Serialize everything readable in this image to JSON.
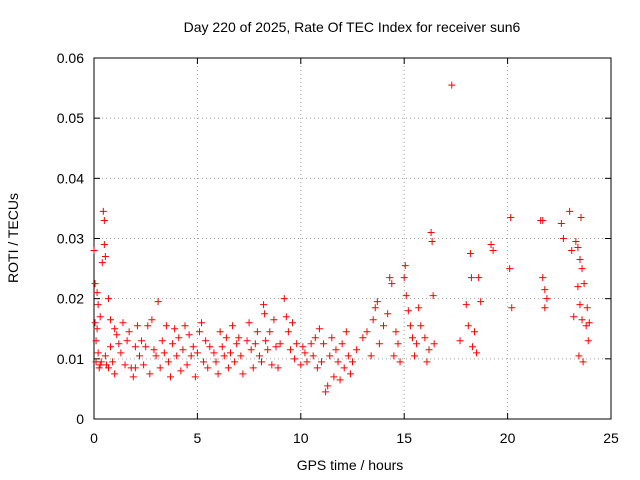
{
  "chart_data": {
    "type": "scatter",
    "title": "Day 220 of 2025, Rate Of TEC Index for receiver sun6",
    "xlabel": "GPS time / hours",
    "ylabel": "ROTI / TECUs",
    "xlim": [
      0,
      25
    ],
    "ylim": [
      0,
      0.06
    ],
    "x_ticks": [
      "0",
      "5",
      "10",
      "15",
      "20",
      "25"
    ],
    "y_ticks": [
      "0",
      "0.01",
      "0.02",
      "0.03",
      "0.04",
      "0.05",
      "0.06"
    ],
    "grid": true,
    "marker": "+",
    "color": "#ff0000",
    "series": [
      {
        "points": [
          [
            0.0,
            0.028
          ],
          [
            0.05,
            0.0225
          ],
          [
            0.05,
            0.016
          ],
          [
            0.1,
            0.013
          ],
          [
            0.1,
            0.0095
          ],
          [
            0.15,
            0.021
          ],
          [
            0.15,
            0.015
          ],
          [
            0.2,
            0.019
          ],
          [
            0.2,
            0.011
          ],
          [
            0.25,
            0.0085
          ],
          [
            0.3,
            0.017
          ],
          [
            0.3,
            0.009
          ],
          [
            0.35,
            0.0095
          ],
          [
            0.4,
            0.026
          ],
          [
            0.45,
            0.0345
          ],
          [
            0.5,
            0.033
          ],
          [
            0.5,
            0.029
          ],
          [
            0.55,
            0.027
          ],
          [
            0.55,
            0.0105
          ],
          [
            0.6,
            0.009
          ],
          [
            0.7,
            0.02
          ],
          [
            0.7,
            0.0085
          ],
          [
            0.8,
            0.0165
          ],
          [
            0.8,
            0.012
          ],
          [
            0.9,
            0.0095
          ],
          [
            1.0,
            0.015
          ],
          [
            1.0,
            0.0075
          ],
          [
            1.1,
            0.014
          ],
          [
            1.2,
            0.0125
          ],
          [
            1.3,
            0.011
          ],
          [
            1.4,
            0.016
          ],
          [
            1.5,
            0.009
          ],
          [
            1.6,
            0.013
          ],
          [
            1.7,
            0.0145
          ],
          [
            1.8,
            0.0085
          ],
          [
            1.9,
            0.007
          ],
          [
            2.0,
            0.012
          ],
          [
            2.0,
            0.0085
          ],
          [
            2.1,
            0.0155
          ],
          [
            2.2,
            0.0105
          ],
          [
            2.3,
            0.013
          ],
          [
            2.4,
            0.009
          ],
          [
            2.5,
            0.012
          ],
          [
            2.6,
            0.0155
          ],
          [
            2.7,
            0.0075
          ],
          [
            2.8,
            0.0165
          ],
          [
            2.9,
            0.0115
          ],
          [
            3.0,
            0.0105
          ],
          [
            3.1,
            0.0195
          ],
          [
            3.2,
            0.0085
          ],
          [
            3.3,
            0.013
          ],
          [
            3.4,
            0.011
          ],
          [
            3.5,
            0.0155
          ],
          [
            3.6,
            0.0095
          ],
          [
            3.7,
            0.007
          ],
          [
            3.8,
            0.0125
          ],
          [
            3.9,
            0.015
          ],
          [
            4.0,
            0.0105
          ],
          [
            4.1,
            0.0135
          ],
          [
            4.2,
            0.008
          ],
          [
            4.3,
            0.0115
          ],
          [
            4.4,
            0.0155
          ],
          [
            4.5,
            0.009
          ],
          [
            4.6,
            0.014
          ],
          [
            4.7,
            0.0105
          ],
          [
            4.8,
            0.012
          ],
          [
            4.9,
            0.007
          ],
          [
            5.0,
            0.011
          ],
          [
            5.1,
            0.0145
          ],
          [
            5.2,
            0.016
          ],
          [
            5.3,
            0.0095
          ],
          [
            5.4,
            0.013
          ],
          [
            5.5,
            0.0085
          ],
          [
            5.6,
            0.012
          ],
          [
            5.8,
            0.011
          ],
          [
            5.9,
            0.0095
          ],
          [
            6.0,
            0.0075
          ],
          [
            6.1,
            0.0145
          ],
          [
            6.2,
            0.012
          ],
          [
            6.3,
            0.0105
          ],
          [
            6.4,
            0.0135
          ],
          [
            6.5,
            0.0085
          ],
          [
            6.6,
            0.011
          ],
          [
            6.7,
            0.0155
          ],
          [
            6.8,
            0.0095
          ],
          [
            6.9,
            0.0125
          ],
          [
            7.0,
            0.0135
          ],
          [
            7.1,
            0.0105
          ],
          [
            7.2,
            0.0075
          ],
          [
            7.4,
            0.013
          ],
          [
            7.5,
            0.016
          ],
          [
            7.6,
            0.0115
          ],
          [
            7.7,
            0.0085
          ],
          [
            7.8,
            0.0125
          ],
          [
            7.9,
            0.0145
          ],
          [
            8.0,
            0.0105
          ],
          [
            8.1,
            0.0095
          ],
          [
            8.2,
            0.019
          ],
          [
            8.25,
            0.0175
          ],
          [
            8.3,
            0.013
          ],
          [
            8.4,
            0.0115
          ],
          [
            8.5,
            0.0145
          ],
          [
            8.6,
            0.009
          ],
          [
            8.7,
            0.0165
          ],
          [
            8.8,
            0.012
          ],
          [
            8.9,
            0.0085
          ],
          [
            9.0,
            0.0125
          ],
          [
            9.2,
            0.02
          ],
          [
            9.3,
            0.017
          ],
          [
            9.4,
            0.0145
          ],
          [
            9.5,
            0.0115
          ],
          [
            9.6,
            0.016
          ],
          [
            9.7,
            0.01
          ],
          [
            9.8,
            0.0125
          ],
          [
            10.0,
            0.009
          ],
          [
            10.1,
            0.012
          ],
          [
            10.2,
            0.011
          ],
          [
            10.3,
            0.0095
          ],
          [
            10.5,
            0.0125
          ],
          [
            10.6,
            0.0105
          ],
          [
            10.7,
            0.0135
          ],
          [
            10.8,
            0.0085
          ],
          [
            10.9,
            0.015
          ],
          [
            11.0,
            0.0095
          ],
          [
            11.1,
            0.0125
          ],
          [
            11.2,
            0.0045
          ],
          [
            11.3,
            0.0055
          ],
          [
            11.4,
            0.0105
          ],
          [
            11.5,
            0.0135
          ],
          [
            11.6,
            0.007
          ],
          [
            11.7,
            0.0115
          ],
          [
            11.8,
            0.0095
          ],
          [
            11.9,
            0.0065
          ],
          [
            12.0,
            0.0125
          ],
          [
            12.1,
            0.0085
          ],
          [
            12.2,
            0.0145
          ],
          [
            12.3,
            0.0105
          ],
          [
            12.4,
            0.0075
          ],
          [
            12.5,
            0.0095
          ],
          [
            12.7,
            0.0115
          ],
          [
            13.0,
            0.0135
          ],
          [
            13.2,
            0.0145
          ],
          [
            13.4,
            0.0105
          ],
          [
            13.5,
            0.0165
          ],
          [
            13.6,
            0.0185
          ],
          [
            13.7,
            0.0195
          ],
          [
            13.8,
            0.0125
          ],
          [
            14.0,
            0.0155
          ],
          [
            14.2,
            0.0175
          ],
          [
            14.3,
            0.0235
          ],
          [
            14.4,
            0.0225
          ],
          [
            14.5,
            0.0105
          ],
          [
            14.6,
            0.0145
          ],
          [
            14.7,
            0.0125
          ],
          [
            14.8,
            0.0095
          ],
          [
            15.0,
            0.0235
          ],
          [
            15.05,
            0.0255
          ],
          [
            15.1,
            0.0205
          ],
          [
            15.2,
            0.018
          ],
          [
            15.3,
            0.0155
          ],
          [
            15.4,
            0.0135
          ],
          [
            15.5,
            0.0105
          ],
          [
            15.6,
            0.0125
          ],
          [
            15.7,
            0.0185
          ],
          [
            15.8,
            0.0155
          ],
          [
            16.0,
            0.0135
          ],
          [
            16.1,
            0.0095
          ],
          [
            16.2,
            0.0115
          ],
          [
            16.3,
            0.031
          ],
          [
            16.35,
            0.0295
          ],
          [
            16.4,
            0.0205
          ],
          [
            16.45,
            0.0125
          ],
          [
            17.3,
            0.0555
          ],
          [
            17.7,
            0.013
          ],
          [
            18.0,
            0.019
          ],
          [
            18.1,
            0.0155
          ],
          [
            18.2,
            0.0275
          ],
          [
            18.25,
            0.0235
          ],
          [
            18.3,
            0.012
          ],
          [
            18.4,
            0.0145
          ],
          [
            18.5,
            0.011
          ],
          [
            18.6,
            0.0235
          ],
          [
            18.7,
            0.0195
          ],
          [
            19.2,
            0.029
          ],
          [
            19.3,
            0.028
          ],
          [
            20.1,
            0.025
          ],
          [
            20.15,
            0.0335
          ],
          [
            20.2,
            0.0185
          ],
          [
            21.6,
            0.033
          ],
          [
            21.7,
            0.033
          ],
          [
            21.7,
            0.0235
          ],
          [
            21.8,
            0.0215
          ],
          [
            21.8,
            0.0185
          ],
          [
            21.9,
            0.02
          ],
          [
            22.6,
            0.0325
          ],
          [
            22.7,
            0.03
          ],
          [
            23.0,
            0.0345
          ],
          [
            23.1,
            0.028
          ],
          [
            23.2,
            0.017
          ],
          [
            23.3,
            0.0295
          ],
          [
            23.4,
            0.0285
          ],
          [
            23.4,
            0.022
          ],
          [
            23.45,
            0.0105
          ],
          [
            23.5,
            0.0265
          ],
          [
            23.5,
            0.019
          ],
          [
            23.55,
            0.0335
          ],
          [
            23.6,
            0.025
          ],
          [
            23.6,
            0.0165
          ],
          [
            23.65,
            0.0095
          ],
          [
            23.7,
            0.0225
          ],
          [
            23.8,
            0.0155
          ],
          [
            23.85,
            0.0185
          ],
          [
            23.9,
            0.013
          ],
          [
            23.95,
            0.016
          ]
        ]
      }
    ]
  }
}
